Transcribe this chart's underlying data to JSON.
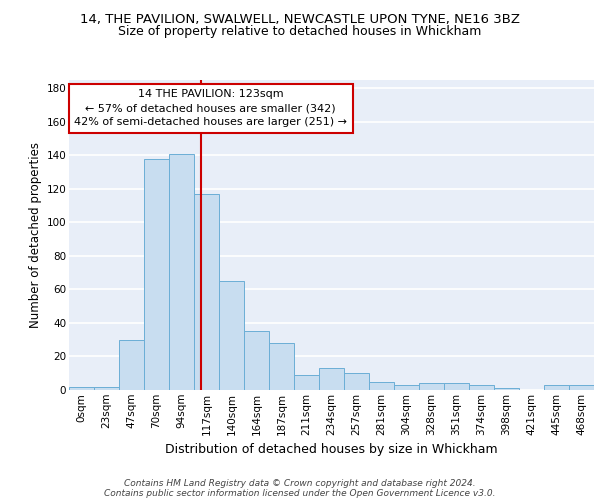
{
  "title1": "14, THE PAVILION, SWALWELL, NEWCASTLE UPON TYNE, NE16 3BZ",
  "title2": "Size of property relative to detached houses in Whickham",
  "xlabel": "Distribution of detached houses by size in Whickham",
  "ylabel": "Number of detached properties",
  "bar_labels": [
    "0sqm",
    "23sqm",
    "47sqm",
    "70sqm",
    "94sqm",
    "117sqm",
    "140sqm",
    "164sqm",
    "187sqm",
    "211sqm",
    "234sqm",
    "257sqm",
    "281sqm",
    "304sqm",
    "328sqm",
    "351sqm",
    "374sqm",
    "398sqm",
    "421sqm",
    "445sqm",
    "468sqm"
  ],
  "bar_values": [
    2,
    2,
    30,
    138,
    141,
    117,
    65,
    35,
    28,
    9,
    13,
    10,
    5,
    3,
    4,
    4,
    3,
    1,
    0,
    3,
    3
  ],
  "bar_color": "#c8ddf0",
  "bar_edge_color": "#6baed6",
  "annotation_text": "14 THE PAVILION: 123sqm\n← 57% of detached houses are smaller (342)\n42% of semi-detached houses are larger (251) →",
  "annotation_box_color": "#ffffff",
  "annotation_box_edge": "#cc0000",
  "vline_color": "#cc0000",
  "ylim": [
    0,
    185
  ],
  "yticks": [
    0,
    20,
    40,
    60,
    80,
    100,
    120,
    140,
    160,
    180
  ],
  "background_color": "#e8eef8",
  "grid_color": "#ffffff",
  "title1_fontsize": 9.5,
  "title2_fontsize": 9,
  "xlabel_fontsize": 9,
  "ylabel_fontsize": 8.5,
  "tick_fontsize": 7.5,
  "annot_fontsize": 8,
  "footer_text1": "Contains HM Land Registry data © Crown copyright and database right 2024.",
  "footer_text2": "Contains public sector information licensed under the Open Government Licence v3.0."
}
